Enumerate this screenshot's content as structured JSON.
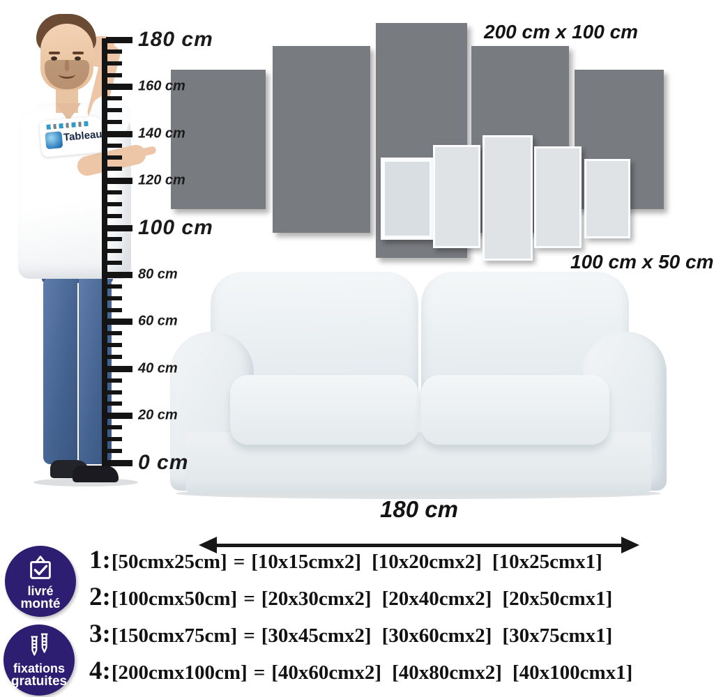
{
  "ruler": {
    "labels": [
      {
        "text": "180 cm",
        "size": "large"
      },
      {
        "text": "160 cm",
        "size": "small"
      },
      {
        "text": "140 cm",
        "size": "small"
      },
      {
        "text": "120 cm",
        "size": "small"
      },
      {
        "text": "100 cm",
        "size": "large"
      },
      {
        "text": "80 cm",
        "size": "small"
      },
      {
        "text": "60 cm",
        "size": "small"
      },
      {
        "text": "40 cm",
        "size": "small"
      },
      {
        "text": "20 cm",
        "size": "small"
      },
      {
        "text": "0 cm",
        "size": "large"
      }
    ]
  },
  "model": {
    "shirt_logo_brand": "Tableau"
  },
  "panels": {
    "large_label": "200 cm x 100 cm",
    "small_label": "100 cm x 50 cm",
    "large_color": "#787c80",
    "small_color": "#dfe3e6",
    "large_count": 5,
    "small_count": 5
  },
  "sofa": {
    "width_label": "180 cm"
  },
  "size_options": [
    {
      "num": "1:",
      "total": "[50cmx25cm]",
      "equals": "=",
      "parts": [
        "[10x15cmx2]",
        "[10x20cmx2]",
        "[10x25cmx1]"
      ]
    },
    {
      "num": "2:",
      "total": "[100cmx50cm]",
      "equals": "=",
      "parts": [
        "[20x30cmx2]",
        "[20x40cmx2]",
        "[20x50cmx1]"
      ]
    },
    {
      "num": "3:",
      "total": "[150cmx75cm]",
      "equals": "=",
      "parts": [
        "[30x45cmx2]",
        "[30x60cmx2]",
        "[30x75cmx1]"
      ]
    },
    {
      "num": "4:",
      "total": "[200cmx100cm]",
      "equals": "=",
      "parts": [
        "[40x60cmx2]",
        "[40x80cmx2]",
        "[40x100cmx1]"
      ]
    }
  ],
  "badges": [
    {
      "icon": "bag-check-icon",
      "lines": [
        "livré",
        "monté"
      ],
      "color": "#2e1e71"
    },
    {
      "icon": "screw-anchors-icon",
      "lines": [
        "fixations",
        "gratuites"
      ],
      "color": "#2e1e71"
    }
  ]
}
